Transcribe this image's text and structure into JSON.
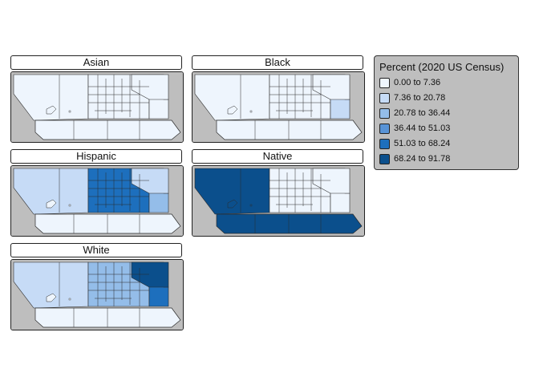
{
  "legend": {
    "title": "Percent (2020 US Census)",
    "bins": [
      {
        "label": "0.00 to 7.36",
        "color": "#eef5fd"
      },
      {
        "label": "7.36 to 20.78",
        "color": "#c6dbf6"
      },
      {
        "label": "20.78 to 36.44",
        "color": "#94bde9"
      },
      {
        "label": "36.44 to 51.03",
        "color": "#5893d6"
      },
      {
        "label": "51.03 to 68.24",
        "color": "#1d6fbd"
      },
      {
        "label": "68.24 to 91.78",
        "color": "#0b4f8c"
      }
    ]
  },
  "panels": [
    {
      "label": "Asian",
      "bin_west": 0,
      "bin_south": 0,
      "bin_center": 0,
      "bin_east": 0,
      "bin_northeast": 0
    },
    {
      "label": "Black",
      "bin_west": 0,
      "bin_south": 0,
      "bin_center": 0,
      "bin_east": 1,
      "bin_northeast": 0
    },
    {
      "label": "Hispanic",
      "bin_west": 1,
      "bin_south": 0,
      "bin_center": 4,
      "bin_east": 2,
      "bin_northeast": 1
    },
    {
      "label": "Native",
      "bin_west": 5,
      "bin_south": 5,
      "bin_center": 0,
      "bin_east": 0,
      "bin_northeast": 0
    },
    {
      "label": "White",
      "bin_west": 1,
      "bin_south": 0,
      "bin_center": 2,
      "bin_east": 4,
      "bin_northeast": 5
    }
  ]
}
